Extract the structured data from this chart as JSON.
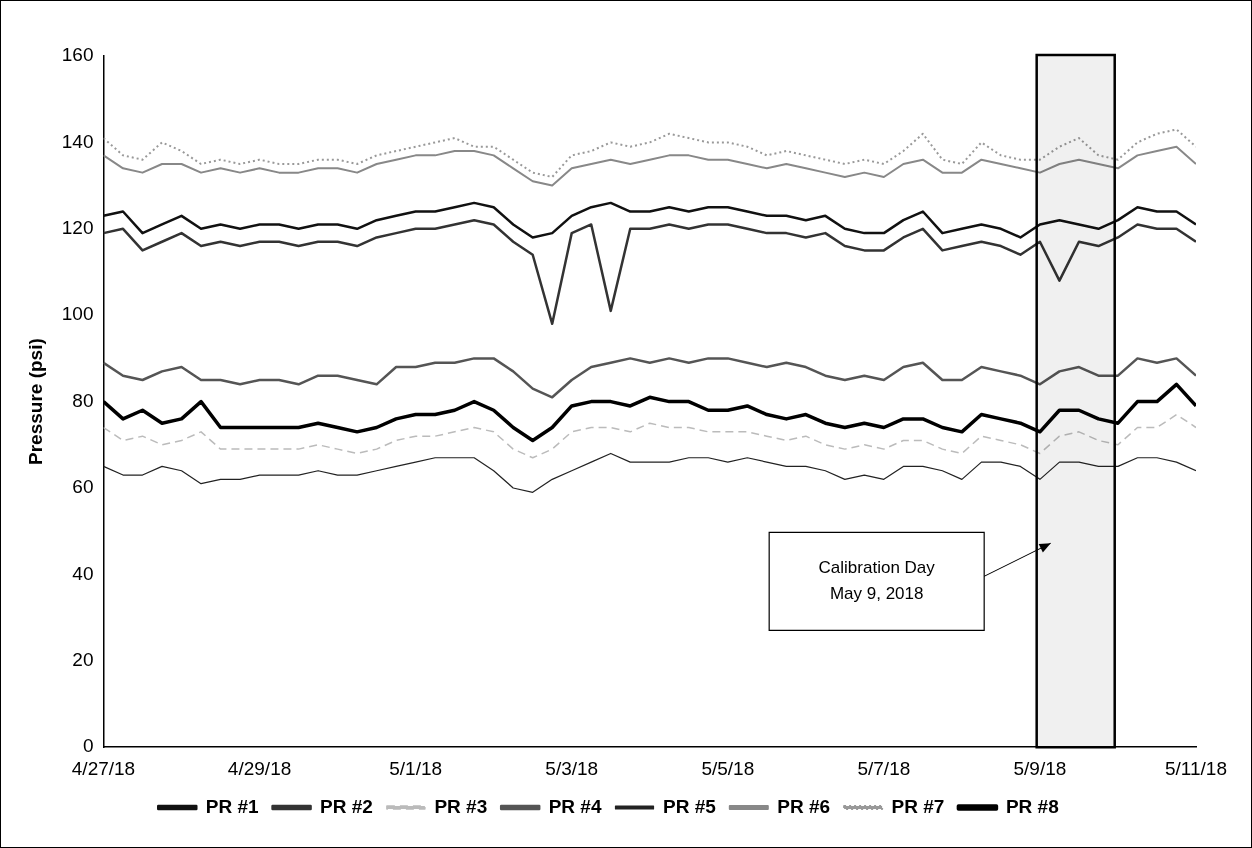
{
  "chart_data": {
    "type": "line",
    "ylabel": "Pressure (psi)",
    "x": [
      "2018-04-27T00:00",
      "2018-04-27T06:00",
      "2018-04-27T12:00",
      "2018-04-27T18:00",
      "2018-04-28T00:00",
      "2018-04-28T06:00",
      "2018-04-28T12:00",
      "2018-04-28T18:00",
      "2018-04-29T00:00",
      "2018-04-29T06:00",
      "2018-04-29T12:00",
      "2018-04-29T18:00",
      "2018-04-30T00:00",
      "2018-04-30T06:00",
      "2018-04-30T12:00",
      "2018-04-30T18:00",
      "2018-05-01T00:00",
      "2018-05-01T06:00",
      "2018-05-01T12:00",
      "2018-05-01T18:00",
      "2018-05-02T00:00",
      "2018-05-02T06:00",
      "2018-05-02T12:00",
      "2018-05-02T18:00",
      "2018-05-03T00:00",
      "2018-05-03T06:00",
      "2018-05-03T12:00",
      "2018-05-03T18:00",
      "2018-05-04T00:00",
      "2018-05-04T06:00",
      "2018-05-04T12:00",
      "2018-05-04T18:00",
      "2018-05-05T00:00",
      "2018-05-05T06:00",
      "2018-05-05T12:00",
      "2018-05-05T18:00",
      "2018-05-06T00:00",
      "2018-05-06T06:00",
      "2018-05-06T12:00",
      "2018-05-06T18:00",
      "2018-05-07T00:00",
      "2018-05-07T06:00",
      "2018-05-07T12:00",
      "2018-05-07T18:00",
      "2018-05-08T00:00",
      "2018-05-08T06:00",
      "2018-05-08T12:00",
      "2018-05-08T18:00",
      "2018-05-09T00:00",
      "2018-05-09T06:00",
      "2018-05-09T12:00",
      "2018-05-09T18:00",
      "2018-05-10T00:00",
      "2018-05-10T06:00",
      "2018-05-10T12:00",
      "2018-05-10T18:00",
      "2018-05-11T00:00"
    ],
    "series": [
      {
        "name": "PR #1",
        "color": "#111111",
        "line_style": "solid",
        "values": [
          123,
          124,
          119,
          121,
          123,
          120,
          121,
          120,
          121,
          121,
          120,
          121,
          121,
          120,
          122,
          123,
          124,
          124,
          125,
          126,
          125,
          121,
          118,
          119,
          123,
          125,
          126,
          124,
          124,
          125,
          124,
          125,
          125,
          124,
          123,
          123,
          122,
          123,
          120,
          119,
          119,
          122,
          124,
          119,
          120,
          121,
          120,
          118,
          121,
          122,
          121,
          120,
          122,
          125,
          124,
          124,
          121
        ]
      },
      {
        "name": "PR #2",
        "color": "#333333",
        "line_style": "solid",
        "values": [
          119,
          120,
          115,
          117,
          119,
          116,
          117,
          116,
          117,
          117,
          116,
          117,
          117,
          116,
          118,
          119,
          120,
          120,
          121,
          122,
          121,
          117,
          114,
          98,
          119,
          121,
          101,
          120,
          120,
          121,
          120,
          121,
          121,
          120,
          119,
          119,
          118,
          119,
          116,
          115,
          115,
          118,
          120,
          115,
          116,
          117,
          116,
          114,
          117,
          108,
          117,
          116,
          118,
          121,
          120,
          120,
          117
        ]
      },
      {
        "name": "PR #3",
        "color": "#bbbbbb",
        "line_style": "dashed",
        "values": [
          74,
          71,
          72,
          70,
          71,
          73,
          69,
          69,
          69,
          69,
          69,
          70,
          69,
          68,
          69,
          71,
          72,
          72,
          73,
          74,
          73,
          69,
          67,
          69,
          73,
          74,
          74,
          73,
          75,
          74,
          74,
          73,
          73,
          73,
          72,
          71,
          72,
          70,
          69,
          70,
          69,
          71,
          71,
          69,
          68,
          72,
          71,
          70,
          68,
          72,
          73,
          71,
          70,
          74,
          74,
          77,
          74
        ]
      },
      {
        "name": "PR #4",
        "color": "#555555",
        "line_style": "solid",
        "values": [
          89,
          86,
          85,
          87,
          88,
          85,
          85,
          84,
          85,
          85,
          84,
          86,
          86,
          85,
          84,
          88,
          88,
          89,
          89,
          90,
          90,
          87,
          83,
          81,
          85,
          88,
          89,
          90,
          89,
          90,
          89,
          90,
          90,
          89,
          88,
          89,
          88,
          86,
          85,
          86,
          85,
          88,
          89,
          85,
          85,
          88,
          87,
          86,
          84,
          87,
          88,
          86,
          86,
          90,
          89,
          90,
          86
        ]
      },
      {
        "name": "PR #5",
        "color": "#222222",
        "line_style": "solid",
        "values": [
          65,
          63,
          63,
          65,
          64,
          61,
          62,
          62,
          63,
          63,
          63,
          64,
          63,
          63,
          64,
          65,
          66,
          67,
          67,
          67,
          64,
          60,
          59,
          62,
          64,
          66,
          68,
          66,
          66,
          66,
          67,
          67,
          66,
          67,
          66,
          65,
          65,
          64,
          62,
          63,
          62,
          65,
          65,
          64,
          62,
          66,
          66,
          65,
          62,
          66,
          66,
          65,
          65,
          67,
          67,
          66,
          64
        ]
      },
      {
        "name": "PR #6",
        "color": "#888888",
        "line_style": "solid",
        "values": [
          137,
          134,
          133,
          135,
          135,
          133,
          134,
          133,
          134,
          133,
          133,
          134,
          134,
          133,
          135,
          136,
          137,
          137,
          138,
          138,
          137,
          134,
          131,
          130,
          134,
          135,
          136,
          135,
          136,
          137,
          137,
          136,
          136,
          135,
          134,
          135,
          134,
          133,
          132,
          133,
          132,
          135,
          136,
          133,
          133,
          136,
          135,
          134,
          133,
          135,
          136,
          135,
          134,
          137,
          138,
          139,
          135
        ]
      },
      {
        "name": "PR #7",
        "color": "#999999",
        "line_style": "dotted",
        "values": [
          141,
          137,
          136,
          140,
          138,
          135,
          136,
          135,
          136,
          135,
          135,
          136,
          136,
          135,
          137,
          138,
          139,
          140,
          141,
          139,
          139,
          136,
          133,
          132,
          137,
          138,
          140,
          139,
          140,
          142,
          141,
          140,
          140,
          139,
          137,
          138,
          137,
          136,
          135,
          136,
          135,
          138,
          142,
          136,
          135,
          140,
          137,
          136,
          136,
          139,
          141,
          137,
          136,
          140,
          142,
          143,
          139
        ]
      },
      {
        "name": "PR #8",
        "color": "#000000",
        "line_style": "solid",
        "values": [
          80,
          76,
          78,
          75,
          76,
          80,
          74,
          74,
          74,
          74,
          74,
          75,
          74,
          73,
          74,
          76,
          77,
          77,
          78,
          80,
          78,
          74,
          71,
          74,
          79,
          80,
          80,
          79,
          81,
          80,
          80,
          78,
          78,
          79,
          77,
          76,
          77,
          75,
          74,
          75,
          74,
          76,
          76,
          74,
          73,
          77,
          76,
          75,
          73,
          78,
          78,
          76,
          75,
          80,
          80,
          84,
          79
        ]
      }
    ],
    "xlim": [
      "2018-04-27",
      "2018-05-11"
    ],
    "xticks": [
      {
        "value": "2018-04-27",
        "label": "4/27/18"
      },
      {
        "value": "2018-04-29",
        "label": "4/29/18"
      },
      {
        "value": "2018-05-01",
        "label": "5/1/18"
      },
      {
        "value": "2018-05-03",
        "label": "5/3/18"
      },
      {
        "value": "2018-05-05",
        "label": "5/5/18"
      },
      {
        "value": "2018-05-07",
        "label": "5/7/18"
      },
      {
        "value": "2018-05-09",
        "label": "5/9/18"
      },
      {
        "value": "2018-05-11",
        "label": "5/11/18"
      }
    ],
    "ylim": [
      0,
      160
    ],
    "yticks": [
      0,
      20,
      40,
      60,
      80,
      100,
      120,
      140,
      160
    ],
    "grid": false,
    "legend": "bottom",
    "marker": "none",
    "bands": [
      {
        "axis": "x",
        "from": "2018-05-08T23:00",
        "to": "2018-05-09T23:00",
        "color": "#000000"
      }
    ],
    "annotations": [
      "Calibration Day\nMay 9, 2018"
    ]
  }
}
